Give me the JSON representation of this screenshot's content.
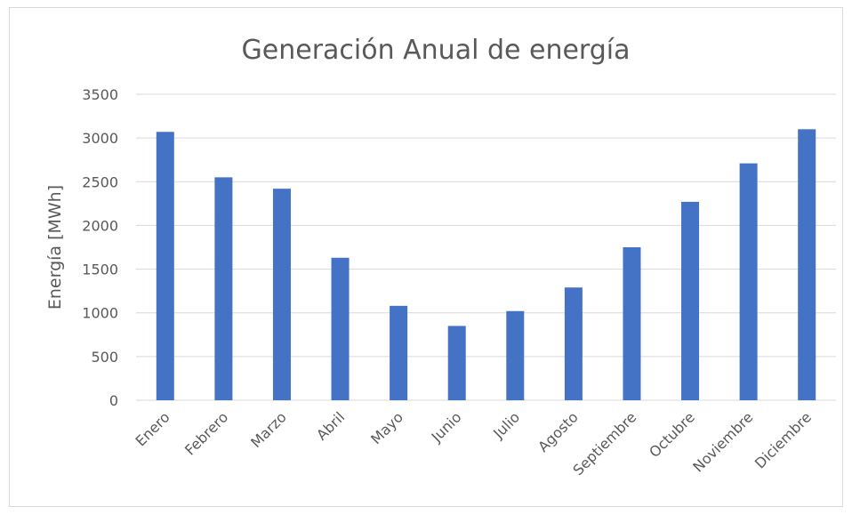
{
  "chart_data": {
    "type": "bar",
    "title": "Generación Anual de energía",
    "y_label": "Energía [MWh]",
    "categories": [
      "Enero",
      "Febrero",
      "Marzo",
      "Abril",
      "Mayo",
      "Junio",
      "Julio",
      "Agosto",
      "Septiembre",
      "Octubre",
      "Noviembre",
      "Diciembre"
    ],
    "values": [
      3070,
      2550,
      2420,
      1630,
      1080,
      850,
      1020,
      1290,
      1750,
      2270,
      2710,
      3100
    ],
    "color": "#4472c4",
    "ylim": [
      0,
      3500
    ],
    "yticks": [
      0,
      500,
      1000,
      1500,
      2000,
      2500,
      3000,
      3500
    ],
    "grid": true
  }
}
